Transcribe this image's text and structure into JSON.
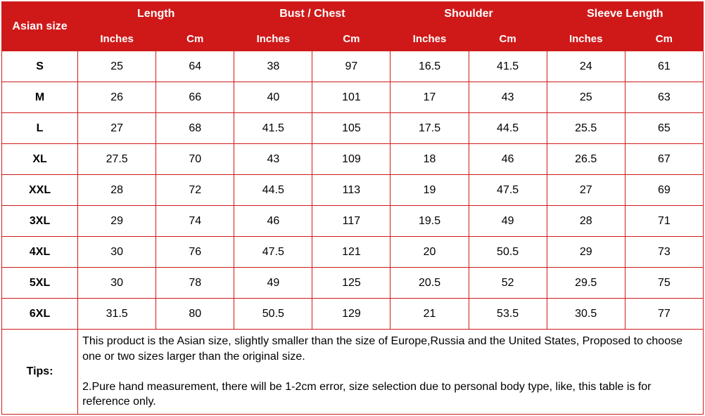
{
  "header": {
    "corner": "Asian size",
    "groups": [
      "Length",
      "Bust / Chest",
      "Shoulder",
      "Sleeve Length"
    ],
    "sub": [
      "Inches",
      "Cm",
      "Inches",
      "Cm",
      "Inches",
      "Cm",
      "Inches",
      "Cm"
    ]
  },
  "rows": [
    {
      "size": "S",
      "v": [
        "25",
        "64",
        "38",
        "97",
        "16.5",
        "41.5",
        "24",
        "61"
      ]
    },
    {
      "size": "M",
      "v": [
        "26",
        "66",
        "40",
        "101",
        "17",
        "43",
        "25",
        "63"
      ]
    },
    {
      "size": "L",
      "v": [
        "27",
        "68",
        "41.5",
        "105",
        "17.5",
        "44.5",
        "25.5",
        "65"
      ]
    },
    {
      "size": "XL",
      "v": [
        "27.5",
        "70",
        "43",
        "109",
        "18",
        "46",
        "26.5",
        "67"
      ]
    },
    {
      "size": "XXL",
      "v": [
        "28",
        "72",
        "44.5",
        "113",
        "19",
        "47.5",
        "27",
        "69"
      ]
    },
    {
      "size": "3XL",
      "v": [
        "29",
        "74",
        "46",
        "117",
        "19.5",
        "49",
        "28",
        "71"
      ]
    },
    {
      "size": "4XL",
      "v": [
        "30",
        "76",
        "47.5",
        "121",
        "20",
        "50.5",
        "29",
        "73"
      ]
    },
    {
      "size": "5XL",
      "v": [
        "30",
        "78",
        "49",
        "125",
        "20.5",
        "52",
        "29.5",
        "75"
      ]
    },
    {
      "size": "6XL",
      "v": [
        "31.5",
        "80",
        "50.5",
        "129",
        "21",
        "53.5",
        "30.5",
        "77"
      ]
    }
  ],
  "tips": {
    "label": "Tips:",
    "text": "This product is the Asian size, slightly smaller than the size of Europe,Russia and the United States, Proposed to choose one or two sizes larger than the original size.\n\n2.Pure hand measurement, there will be 1-2cm error, size selection due to personal body type, like, this table is for reference only."
  },
  "style": {
    "header_bg": "#cf1919",
    "header_fg": "#ffffff",
    "border_color": "#cf1919",
    "body_fg": "#000000",
    "body_bg": "#ffffff",
    "font_family": "Arial",
    "header_font_size_pt": 12,
    "body_font_size_pt": 12
  }
}
